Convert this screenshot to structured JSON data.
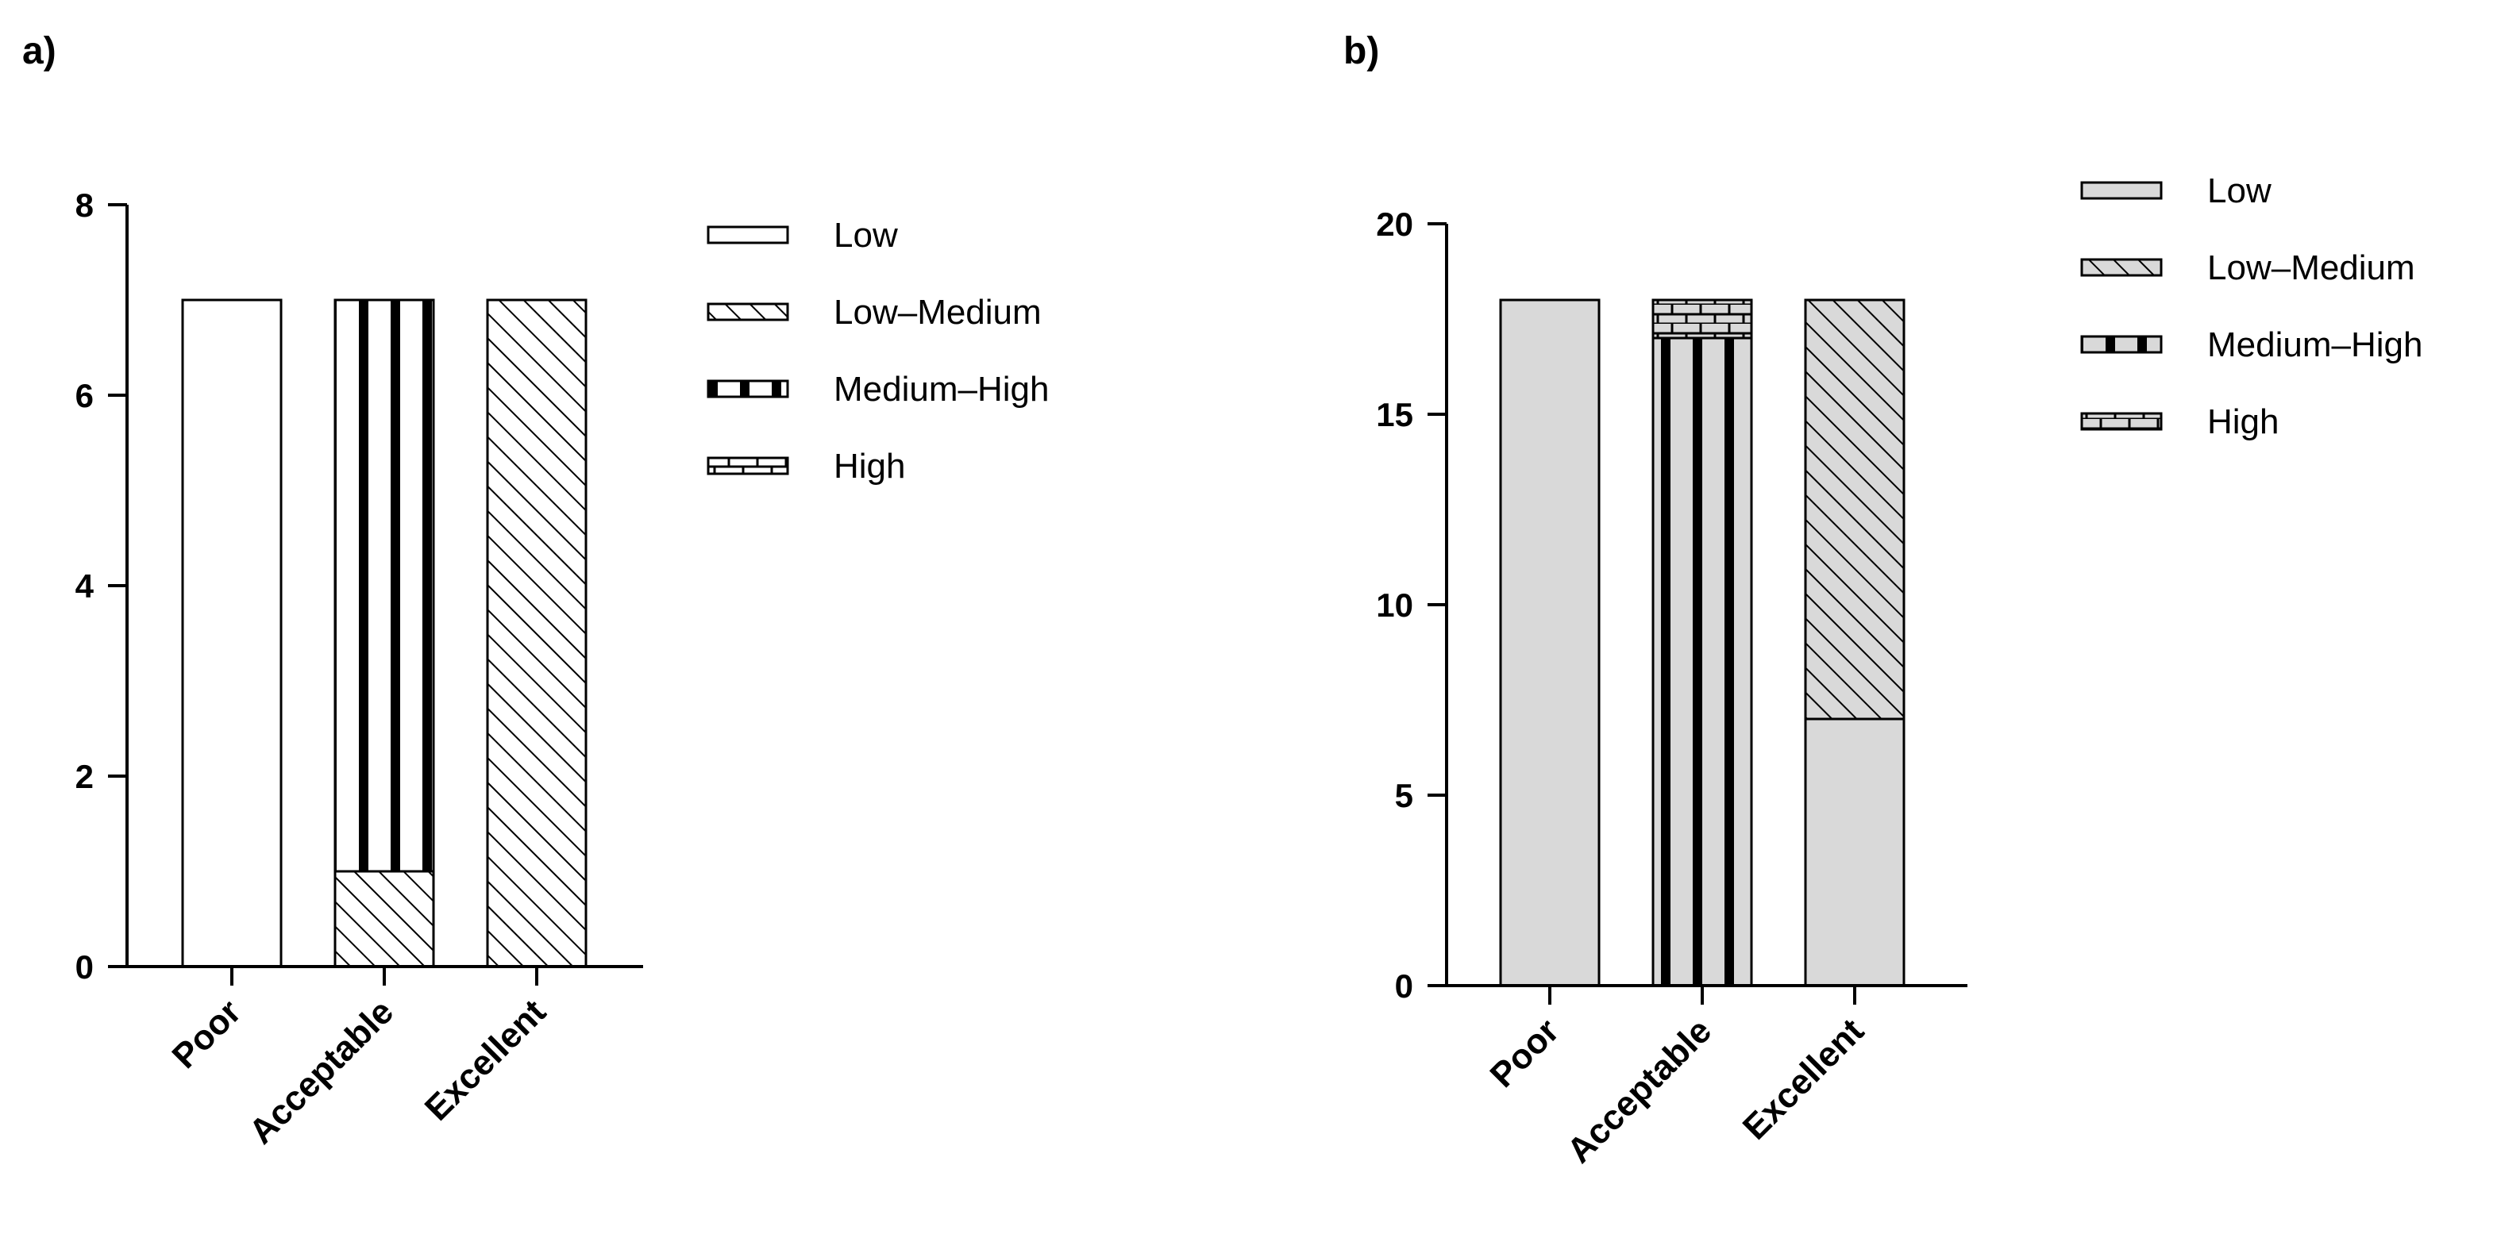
{
  "chart_data": [
    {
      "panel_label": "a)",
      "type": "bar",
      "stacked": true,
      "categories": [
        "Poor",
        "Acceptable",
        "Excellent"
      ],
      "series": [
        {
          "name": "Low",
          "values": [
            7,
            0,
            0
          ],
          "fill": "#ffffff",
          "pattern": "none"
        },
        {
          "name": "Low–Medium",
          "values": [
            0,
            1,
            7
          ],
          "fill": "#ffffff",
          "pattern": "diagonal"
        },
        {
          "name": "Medium–High",
          "values": [
            0,
            6,
            0
          ],
          "fill": "#ffffff",
          "pattern": "vertical-thick"
        },
        {
          "name": "High",
          "values": [
            0,
            0,
            0
          ],
          "fill": "#ffffff",
          "pattern": "brick"
        }
      ],
      "ylim": [
        0,
        8
      ],
      "yticks": [
        0,
        2,
        4,
        6,
        8
      ],
      "ytick_labels": [
        "0",
        "2",
        "4",
        "6",
        "8"
      ],
      "xlabel": "",
      "ylabel": "",
      "legend_placement": "right"
    },
    {
      "panel_label": "b)",
      "type": "bar",
      "stacked": true,
      "categories": [
        "Poor",
        "Acceptable",
        "Excellent"
      ],
      "series": [
        {
          "name": "Low",
          "values": [
            18,
            0,
            7
          ],
          "fill": "#d9d9d9",
          "pattern": "none"
        },
        {
          "name": "Low–Medium",
          "values": [
            0,
            0,
            11
          ],
          "fill": "#d9d9d9",
          "pattern": "diagonal"
        },
        {
          "name": "Medium–High",
          "values": [
            0,
            17,
            0
          ],
          "fill": "#d9d9d9",
          "pattern": "vertical-thick"
        },
        {
          "name": "High",
          "values": [
            0,
            1,
            0
          ],
          "fill": "#d9d9d9",
          "pattern": "brick"
        }
      ],
      "ylim": [
        0,
        20
      ],
      "yticks": [
        0,
        5,
        10,
        15,
        20
      ],
      "ytick_labels": [
        "0",
        "5",
        "10",
        "15",
        "20"
      ],
      "xlabel": "",
      "ylabel": "",
      "legend_placement": "right"
    }
  ]
}
